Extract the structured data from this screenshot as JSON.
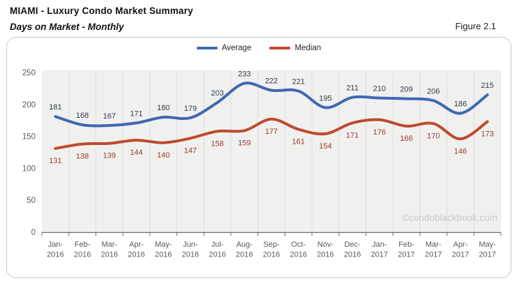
{
  "header": {
    "title": "MIAMI - Luxury Condo Market Summary",
    "subtitle": "Days on Market - Monthly",
    "figure_label": "Figure 2.1"
  },
  "legend": [
    {
      "label": "Average",
      "color": "#3e68b2"
    },
    {
      "label": "Median",
      "color": "#bf4a2d"
    }
  ],
  "watermark": "©condoblackbook.com",
  "colors": {
    "plot_background": "#f0f0ef",
    "gridline": "#dedede",
    "axis_line": "#6e6e6e",
    "axis_text": "#595959",
    "average_line": "#3e68b2",
    "median_line": "#bf4a2d",
    "average_label": "#2f3b4c",
    "median_label": "#9c392a",
    "watermark": "#c9c9c9",
    "frame_border": "#c9c9c9"
  },
  "chart_data": {
    "type": "line",
    "title": "Days on Market - Monthly",
    "xlabel": "",
    "ylabel": "",
    "categories": [
      "Jan-2016",
      "Feb-2016",
      "Mar-2016",
      "Apr-2016",
      "May-2016",
      "Jun-2016",
      "Jul-2016",
      "Aug-2016",
      "Sep-2016",
      "Oct-2016",
      "Nov-2016",
      "Dec-2016",
      "Jan-2017",
      "Feb-2017",
      "Mar-2017",
      "Apr-2017",
      "May-2017"
    ],
    "series": [
      {
        "name": "Average",
        "color": "#3e68b2",
        "label_color": "#2f3b4c",
        "values": [
          181,
          168,
          167,
          171,
          180,
          179,
          203,
          233,
          222,
          221,
          195,
          211,
          210,
          209,
          206,
          186,
          215
        ]
      },
      {
        "name": "Median",
        "color": "#bf4a2d",
        "label_color": "#9c392a",
        "values": [
          131,
          138,
          139,
          144,
          140,
          147,
          158,
          159,
          177,
          161,
          154,
          171,
          176,
          166,
          170,
          146,
          173
        ]
      }
    ],
    "ylim": [
      0,
      250
    ],
    "yticks": [
      0,
      50,
      100,
      150,
      200,
      250
    ],
    "grid": "vertical",
    "smooth": true,
    "data_labels": true,
    "legend_position": "top-center"
  }
}
